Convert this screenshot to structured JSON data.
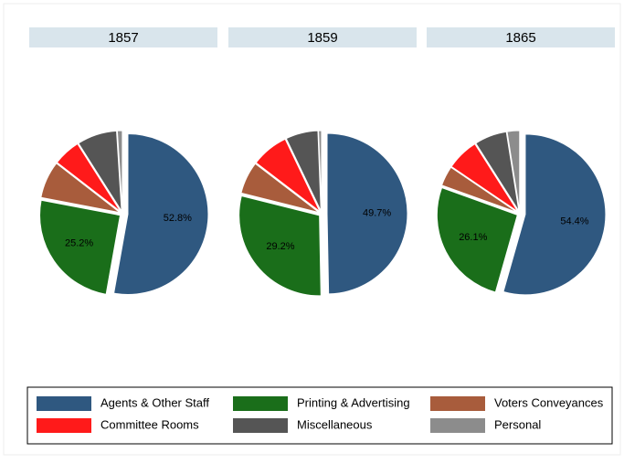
{
  "chart_data": [
    {
      "type": "pie",
      "title": "1857",
      "categories": [
        "Agents & Other Staff",
        "Printing & Advertising",
        "Voters Conveyances",
        "Committee Rooms",
        "Miscellaneous",
        "Personal"
      ],
      "colors": [
        "#2f5880",
        "#1a6e1a",
        "#a85c3c",
        "#ff1a1a",
        "#555555",
        "#8c8c8c"
      ],
      "values": [
        52.8,
        25.2,
        7.5,
        5.5,
        8,
        1
      ],
      "value_labels": [
        "52.8%",
        "25.2%",
        null,
        null,
        null,
        null
      ]
    },
    {
      "type": "pie",
      "title": "1859",
      "categories": [
        "Agents & Other Staff",
        "Printing & Advertising",
        "Voters Conveyances",
        "Committee Rooms",
        "Miscellaneous",
        "Personal"
      ],
      "colors": [
        "#2f5880",
        "#1a6e1a",
        "#a85c3c",
        "#ff1a1a",
        "#555555",
        "#8c8c8c"
      ],
      "values": [
        49.7,
        29.2,
        6.5,
        7.5,
        6.5,
        0.6
      ],
      "value_labels": [
        "49.7%",
        "29.2%",
        null,
        null,
        null,
        null
      ]
    },
    {
      "type": "pie",
      "title": "1865",
      "categories": [
        "Agents & Other Staff",
        "Printing & Advertising",
        "Voters Conveyances",
        "Committee Rooms",
        "Miscellaneous",
        "Personal"
      ],
      "colors": [
        "#2f5880",
        "#1a6e1a",
        "#a85c3c",
        "#ff1a1a",
        "#555555",
        "#8c8c8c"
      ],
      "values": [
        54.4,
        26.1,
        4,
        6.5,
        6.5,
        2.5
      ],
      "value_labels": [
        "54.4%",
        "26.1%",
        null,
        null,
        null,
        null
      ]
    }
  ]
}
